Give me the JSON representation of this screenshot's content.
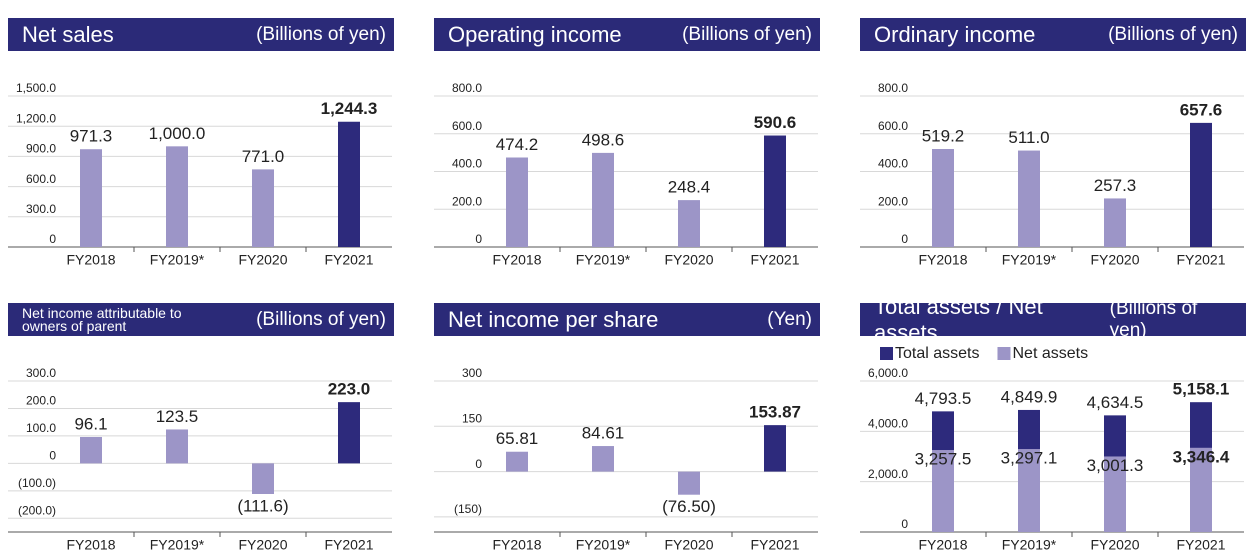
{
  "chart_data": [
    {
      "type": "bar",
      "title": "Net sales",
      "unit": "(Billions of yen)",
      "categories": [
        "FY2018",
        "FY2019*",
        "FY2020",
        "FY2021"
      ],
      "values": [
        971.3,
        1000.0,
        771.0,
        1244.3
      ],
      "value_labels": [
        "971.3",
        "1,000.0",
        "771.0",
        "1,244.3"
      ],
      "colors": [
        "#9c95c7",
        "#9c95c7",
        "#9c95c7",
        "#2d2a7c"
      ],
      "ylim": [
        0,
        1500
      ],
      "yticks": [
        0,
        {
          "value": 300,
          "label": "300.0"
        },
        {
          "value": 600,
          "label": "600.0"
        },
        {
          "value": 900,
          "label": "900.0"
        },
        {
          "value": 1200,
          "label": "1,200.0"
        },
        {
          "value": 1500,
          "label": "1,500.0"
        }
      ],
      "grid": true
    },
    {
      "type": "bar",
      "title": "Operating income",
      "unit": "(Billions of yen)",
      "categories": [
        "FY2018",
        "FY2019*",
        "FY2020",
        "FY2021"
      ],
      "values": [
        474.2,
        498.6,
        248.4,
        590.6
      ],
      "value_labels": [
        "474.2",
        "498.6",
        "248.4",
        "590.6"
      ],
      "colors": [
        "#9c95c7",
        "#9c95c7",
        "#9c95c7",
        "#2d2a7c"
      ],
      "ylim": [
        0,
        800
      ],
      "yticks": [
        0,
        {
          "value": 200,
          "label": "200.0"
        },
        {
          "value": 400,
          "label": "400.0"
        },
        {
          "value": 600,
          "label": "600.0"
        },
        {
          "value": 800,
          "label": "800.0"
        }
      ],
      "grid": true
    },
    {
      "type": "bar",
      "title": "Ordinary income",
      "unit": "(Billions of yen)",
      "categories": [
        "FY2018",
        "FY2019*",
        "FY2020",
        "FY2021"
      ],
      "values": [
        519.2,
        511.0,
        257.3,
        657.6
      ],
      "value_labels": [
        "519.2",
        "511.0",
        "257.3",
        "657.6"
      ],
      "colors": [
        "#9c95c7",
        "#9c95c7",
        "#9c95c7",
        "#2d2a7c"
      ],
      "ylim": [
        0,
        800
      ],
      "yticks": [
        0,
        {
          "value": 200,
          "label": "200.0"
        },
        {
          "value": 400,
          "label": "400.0"
        },
        {
          "value": 600,
          "label": "600.0"
        },
        {
          "value": 800,
          "label": "800.0"
        }
      ],
      "grid": true
    },
    {
      "type": "bar",
      "title": "Net income attributable to owners of parent",
      "unit": "(Billions of yen)",
      "categories": [
        "FY2018",
        "FY2019*",
        "FY2020",
        "FY2021"
      ],
      "values": [
        96.1,
        123.5,
        -111.6,
        223.0
      ],
      "value_labels": [
        "96.1",
        "123.5",
        "(111.6)",
        "223.0"
      ],
      "colors": [
        "#9c95c7",
        "#9c95c7",
        "#9c95c7",
        "#2d2a7c"
      ],
      "ylim": [
        -250,
        300
      ],
      "yticks": [
        {
          "value": -200,
          "label": "(200.0)"
        },
        {
          "value": -100,
          "label": "(100.0)"
        },
        0,
        {
          "value": 100,
          "label": "100.0"
        },
        {
          "value": 200,
          "label": "200.0"
        },
        {
          "value": 300,
          "label": "300.0"
        }
      ],
      "grid": true
    },
    {
      "type": "bar",
      "title": "Net income per share",
      "unit": "(Yen)",
      "categories": [
        "FY2018",
        "FY2019*",
        "FY2020",
        "FY2021"
      ],
      "values": [
        65.81,
        84.61,
        -76.5,
        153.87
      ],
      "value_labels": [
        "65.81",
        "84.61",
        "(76.50)",
        "153.87"
      ],
      "colors": [
        "#9c95c7",
        "#9c95c7",
        "#9c95c7",
        "#2d2a7c"
      ],
      "ylim": [
        -200,
        300
      ],
      "yticks": [
        {
          "value": -150,
          "label": "(150)"
        },
        0,
        150,
        300
      ],
      "grid": true
    },
    {
      "type": "overlap_bar",
      "title": "Total assets / Net assets",
      "unit": "(Billions of yen)",
      "categories": [
        "FY2018",
        "FY2019*",
        "FY2020",
        "FY2021"
      ],
      "series": [
        {
          "name": "Total assets",
          "color": "#2d2a7c",
          "values": [
            4793.5,
            4849.9,
            4634.5,
            5158.1
          ],
          "value_labels": [
            "4,793.5",
            "4,849.9",
            "4,634.5",
            "5,158.1"
          ]
        },
        {
          "name": "Net assets",
          "color": "#9c95c7",
          "values": [
            3257.5,
            3297.1,
            3001.3,
            3346.4
          ],
          "value_labels": [
            "3,257.5",
            "3,297.1",
            "3,001.3",
            "3,346.4"
          ]
        }
      ],
      "legend": "top-left",
      "ylim": [
        0,
        6000
      ],
      "yticks": [
        0,
        {
          "value": 2000,
          "label": "2,000.0"
        },
        {
          "value": 4000,
          "label": "4,000.0"
        },
        {
          "value": 6000,
          "label": "6,000.0"
        }
      ],
      "grid": true
    }
  ]
}
